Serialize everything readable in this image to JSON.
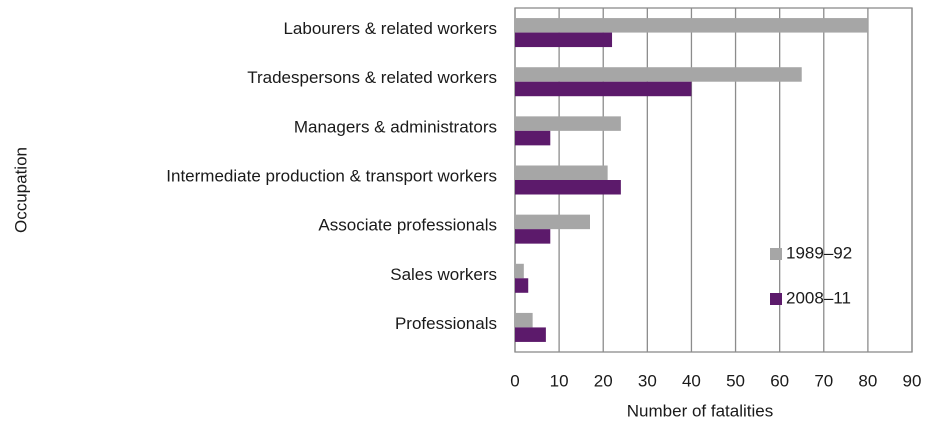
{
  "chart_data": {
    "type": "bar",
    "orientation": "horizontal",
    "xlabel": "Number of fatalities",
    "ylabel": "Occupation",
    "categories": [
      "Labourers & related workers",
      "Tradespersons & related workers",
      "Managers & administrators",
      "Intermediate production & transport workers",
      "Associate professionals",
      "Sales workers",
      "Professionals"
    ],
    "series": [
      {
        "name": "1989–92",
        "color": "#a6a6a6",
        "values": [
          80,
          65,
          24,
          21,
          17,
          2,
          4
        ]
      },
      {
        "name": "2008–11",
        "color": "#5c1a6b",
        "values": [
          22,
          40,
          8,
          24,
          8,
          3,
          7
        ]
      }
    ],
    "xlim": [
      0,
      90
    ],
    "xticks": [
      0,
      10,
      20,
      30,
      40,
      50,
      60,
      70,
      80,
      90
    ],
    "grid": true,
    "legend": "lower right"
  }
}
